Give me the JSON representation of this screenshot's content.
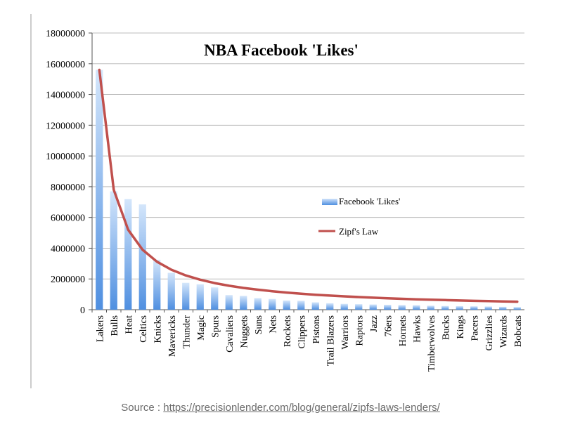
{
  "chart_data": {
    "type": "bar",
    "title": "NBA Facebook 'Likes'",
    "categories": [
      "Lakers",
      "Bulls",
      "Heat",
      "Celtics",
      "Knicks",
      "Mavericks",
      "Thunder",
      "Magic",
      "Spurs",
      "Cavaliers",
      "Nuggets",
      "Suns",
      "Nets",
      "Rockets",
      "Clippers",
      "Pistons",
      "Trail Blazers",
      "Warriors",
      "Raptors",
      "Jazz",
      "76ers",
      "Hornets",
      "Hawks",
      "Timberwolves",
      "Bucks",
      "Kings",
      "Pacers",
      "Grizzlies",
      "Wizards",
      "Bobcats"
    ],
    "series": [
      {
        "name": "Facebook 'Likes'",
        "type": "bar",
        "values": [
          15600000,
          7700000,
          7200000,
          6850000,
          3250000,
          2400000,
          1750000,
          1650000,
          1450000,
          950000,
          900000,
          750000,
          700000,
          600000,
          580000,
          480000,
          420000,
          380000,
          360000,
          340000,
          320000,
          300000,
          290000,
          260000,
          240000,
          230000,
          220000,
          210000,
          190000,
          170000
        ]
      },
      {
        "name": "Zipf's Law",
        "type": "line",
        "values": [
          15600000,
          7800000,
          5200000,
          3900000,
          3120000,
          2600000,
          2228571,
          1950000,
          1733333,
          1560000,
          1418182,
          1300000,
          1200000,
          1114286,
          1040000,
          975000,
          917647,
          866667,
          821053,
          780000,
          742857,
          709091,
          678261,
          650000,
          624000,
          600000,
          577778,
          557143,
          537931,
          520000
        ]
      }
    ],
    "ylim": [
      0,
      18000000
    ],
    "yticks": [
      "0",
      "2000000",
      "4000000",
      "6000000",
      "8000000",
      "10000000",
      "12000000",
      "14000000",
      "16000000",
      "18000000"
    ],
    "grid": true,
    "legend_position": "right",
    "colors": {
      "bars": "#4f8fe0",
      "bars_light": "#cfe2fa",
      "line": "#c0504d",
      "grid": "#bdbdbd"
    }
  },
  "source": {
    "prefix": "Source : ",
    "link_text": "https://precisionlender.com/blog/general/zipfs-laws-lenders/"
  }
}
